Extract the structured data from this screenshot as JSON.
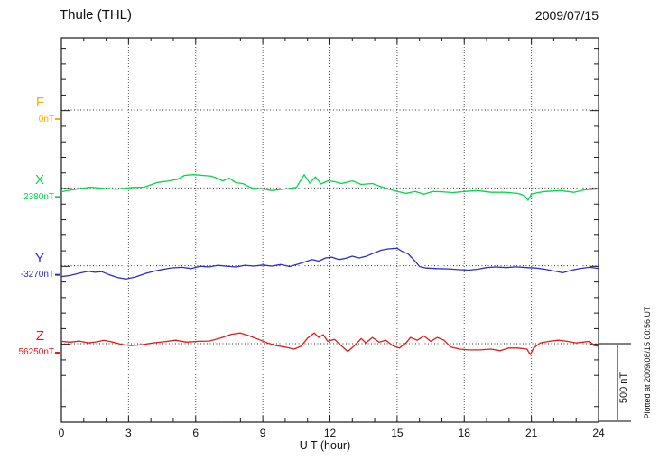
{
  "chart_data": {
    "type": "line",
    "title": "Thule (THL)",
    "date": "2009/07/15",
    "xlabel": "U T (hour)",
    "x_range": [
      0,
      24
    ],
    "x_major_ticks": [
      0,
      3,
      6,
      9,
      12,
      15,
      18,
      21,
      24
    ],
    "x_minor_tick_step_hours": 1,
    "vertical_gridline_hours": [
      3,
      6,
      9,
      12,
      15,
      18,
      21
    ],
    "y_minor_tick_nT": 100,
    "baseline_spacing_nT": 500,
    "grid_on": true,
    "scale_bar": {
      "label": "500 nT",
      "nT": 500
    },
    "plotted_at_note": "Plotted at 2009/08/15 00:56 UT",
    "palette": {
      "frame": "#1a1a1a",
      "grid_dots": "#555555",
      "baseline_dots": "#333333",
      "scale_bar": "#808080"
    },
    "series": [
      {
        "name": "F",
        "baseline_value_label": "0nT",
        "color": "#ffaa00",
        "points": []
      },
      {
        "name": "X",
        "baseline_value_label": "2380nT",
        "color": "#00d948",
        "points": [
          [
            0,
            -25
          ],
          [
            0.5,
            -12
          ],
          [
            1.3,
            5
          ],
          [
            2.0,
            -5
          ],
          [
            2.5,
            -8
          ],
          [
            3.2,
            3
          ],
          [
            3.7,
            5
          ],
          [
            4.3,
            35
          ],
          [
            4.8,
            45
          ],
          [
            5.2,
            55
          ],
          [
            5.5,
            80
          ],
          [
            5.9,
            85
          ],
          [
            6.3,
            80
          ],
          [
            6.7,
            75
          ],
          [
            7.0,
            60
          ],
          [
            7.2,
            45
          ],
          [
            7.5,
            62
          ],
          [
            7.8,
            33
          ],
          [
            8.1,
            28
          ],
          [
            8.5,
            0
          ],
          [
            9.0,
            -7
          ],
          [
            9.4,
            -17
          ],
          [
            10.0,
            -7
          ],
          [
            10.5,
            3
          ],
          [
            10.85,
            85
          ],
          [
            11.1,
            30
          ],
          [
            11.35,
            70
          ],
          [
            11.6,
            25
          ],
          [
            11.9,
            45
          ],
          [
            12.2,
            40
          ],
          [
            12.5,
            28
          ],
          [
            13.0,
            45
          ],
          [
            13.4,
            22
          ],
          [
            13.9,
            28
          ],
          [
            14.2,
            12
          ],
          [
            14.6,
            -7
          ],
          [
            15.0,
            -23
          ],
          [
            15.4,
            -35
          ],
          [
            15.8,
            -23
          ],
          [
            16.2,
            -40
          ],
          [
            16.6,
            -23
          ],
          [
            17.0,
            -25
          ],
          [
            17.5,
            -30
          ],
          [
            18.0,
            -23
          ],
          [
            18.6,
            -17
          ],
          [
            19.2,
            -28
          ],
          [
            19.8,
            -28
          ],
          [
            20.4,
            -35
          ],
          [
            20.7,
            -50
          ],
          [
            20.85,
            -80
          ],
          [
            21.0,
            -40
          ],
          [
            21.3,
            -30
          ],
          [
            21.6,
            -23
          ],
          [
            22.3,
            -17
          ],
          [
            22.9,
            -28
          ],
          [
            23.4,
            -12
          ],
          [
            24,
            -7
          ]
        ]
      },
      {
        "name": "Y",
        "baseline_value_label": "-3270nT",
        "color": "#2d2dcb",
        "points": [
          [
            0,
            -70
          ],
          [
            0.4,
            -62
          ],
          [
            0.8,
            -48
          ],
          [
            1.2,
            -35
          ],
          [
            1.5,
            -42
          ],
          [
            1.8,
            -38
          ],
          [
            2.1,
            -55
          ],
          [
            2.5,
            -75
          ],
          [
            2.9,
            -85
          ],
          [
            3.3,
            -72
          ],
          [
            3.8,
            -48
          ],
          [
            4.3,
            -30
          ],
          [
            4.9,
            -14
          ],
          [
            5.4,
            -10
          ],
          [
            5.8,
            -18
          ],
          [
            6.2,
            -3
          ],
          [
            6.6,
            -8
          ],
          [
            7.0,
            3
          ],
          [
            7.4,
            -3
          ],
          [
            7.8,
            -8
          ],
          [
            8.2,
            3
          ],
          [
            8.6,
            -2
          ],
          [
            9.0,
            5
          ],
          [
            9.4,
            -2
          ],
          [
            9.8,
            8
          ],
          [
            10.2,
            -5
          ],
          [
            10.6,
            12
          ],
          [
            10.9,
            25
          ],
          [
            11.2,
            40
          ],
          [
            11.5,
            30
          ],
          [
            11.8,
            50
          ],
          [
            12.1,
            55
          ],
          [
            12.4,
            40
          ],
          [
            12.7,
            48
          ],
          [
            13.0,
            62
          ],
          [
            13.3,
            50
          ],
          [
            13.6,
            60
          ],
          [
            13.9,
            78
          ],
          [
            14.3,
            100
          ],
          [
            14.6,
            108
          ],
          [
            15.0,
            112
          ],
          [
            15.2,
            95
          ],
          [
            15.5,
            75
          ],
          [
            15.8,
            30
          ],
          [
            16.0,
            -5
          ],
          [
            16.3,
            -15
          ],
          [
            16.8,
            -18
          ],
          [
            17.3,
            -20
          ],
          [
            17.8,
            -25
          ],
          [
            18.2,
            -28
          ],
          [
            18.6,
            -22
          ],
          [
            19.0,
            -12
          ],
          [
            19.4,
            -8
          ],
          [
            19.9,
            -12
          ],
          [
            20.3,
            -7
          ],
          [
            20.8,
            -12
          ],
          [
            21.2,
            -15
          ],
          [
            21.6,
            -22
          ],
          [
            22.0,
            -33
          ],
          [
            22.4,
            -45
          ],
          [
            22.8,
            -28
          ],
          [
            23.2,
            -17
          ],
          [
            23.6,
            -10
          ],
          [
            24,
            -17
          ]
        ]
      },
      {
        "name": "Z",
        "baseline_value_label": "56250nT",
        "color": "#e81818",
        "points": [
          [
            0,
            15
          ],
          [
            0.4,
            10
          ],
          [
            0.8,
            17
          ],
          [
            1.2,
            5
          ],
          [
            1.6,
            12
          ],
          [
            1.9,
            22
          ],
          [
            2.3,
            10
          ],
          [
            2.7,
            -5
          ],
          [
            3.1,
            -12
          ],
          [
            3.6,
            -7
          ],
          [
            4.1,
            5
          ],
          [
            4.6,
            12
          ],
          [
            5.1,
            22
          ],
          [
            5.6,
            10
          ],
          [
            6.1,
            15
          ],
          [
            6.6,
            17
          ],
          [
            7.1,
            35
          ],
          [
            7.6,
            60
          ],
          [
            8.0,
            68
          ],
          [
            8.4,
            50
          ],
          [
            8.8,
            28
          ],
          [
            9.2,
            5
          ],
          [
            9.6,
            -12
          ],
          [
            10.0,
            -22
          ],
          [
            10.4,
            -35
          ],
          [
            10.7,
            -17
          ],
          [
            11.0,
            35
          ],
          [
            11.3,
            68
          ],
          [
            11.5,
            40
          ],
          [
            11.7,
            57
          ],
          [
            11.9,
            15
          ],
          [
            12.2,
            28
          ],
          [
            12.5,
            -12
          ],
          [
            12.8,
            -50
          ],
          [
            13.1,
            -12
          ],
          [
            13.4,
            33
          ],
          [
            13.6,
            5
          ],
          [
            13.9,
            40
          ],
          [
            14.2,
            10
          ],
          [
            14.5,
            22
          ],
          [
            14.8,
            -12
          ],
          [
            15.1,
            -28
          ],
          [
            15.4,
            5
          ],
          [
            15.6,
            40
          ],
          [
            15.9,
            22
          ],
          [
            16.2,
            50
          ],
          [
            16.5,
            15
          ],
          [
            16.8,
            40
          ],
          [
            17.1,
            22
          ],
          [
            17.4,
            -22
          ],
          [
            17.8,
            -35
          ],
          [
            18.2,
            -40
          ],
          [
            18.7,
            -40
          ],
          [
            19.2,
            -35
          ],
          [
            19.6,
            -45
          ],
          [
            20.0,
            -28
          ],
          [
            20.4,
            -28
          ],
          [
            20.8,
            -35
          ],
          [
            20.95,
            -70
          ],
          [
            21.1,
            -28
          ],
          [
            21.4,
            5
          ],
          [
            21.8,
            15
          ],
          [
            22.2,
            22
          ],
          [
            22.6,
            15
          ],
          [
            23.0,
            5
          ],
          [
            23.3,
            10
          ],
          [
            23.6,
            15
          ],
          [
            23.8,
            -12
          ],
          [
            24,
            -17
          ]
        ]
      }
    ]
  }
}
